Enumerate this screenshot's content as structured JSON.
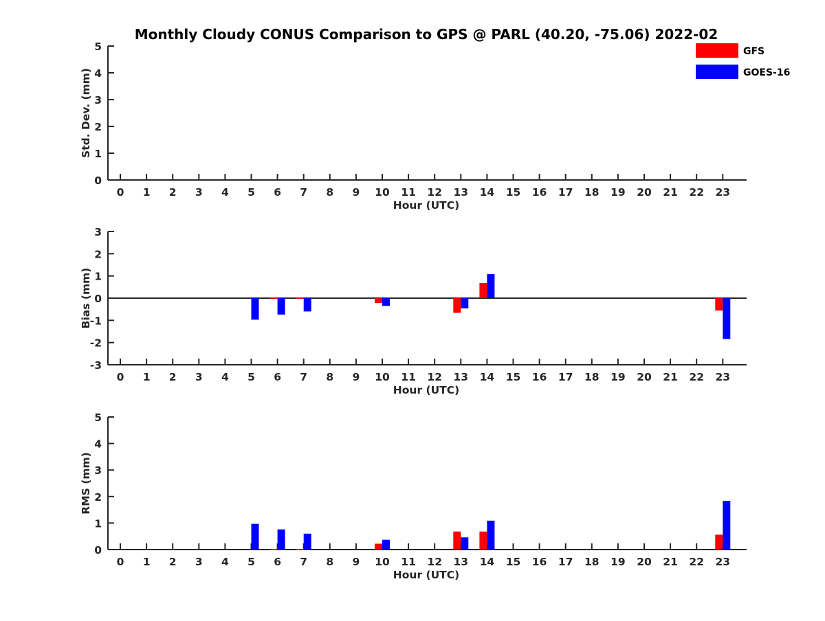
{
  "chart_data": {
    "title": "Monthly Cloudy CONUS Comparison to GPS @ PARL (40.20, -75.06) 2022-02",
    "legend_position": "top-right",
    "series_colors": {
      "GFS": "#ff0000",
      "GOES-16": "#0000ff"
    },
    "legend": [
      {
        "label": "GFS",
        "color": "#ff0000"
      },
      {
        "label": "GOES-16",
        "color": "#0000ff"
      }
    ],
    "panels": [
      {
        "type": "bar",
        "ylabel": "Std. Dev. (mm)",
        "xlabel": "Hour (UTC)",
        "ylim": [
          0,
          5
        ],
        "yticks": [
          "0",
          "1",
          "2",
          "3",
          "4",
          "5"
        ],
        "zero_line": false,
        "categories": [
          "0",
          "1",
          "2",
          "3",
          "4",
          "5",
          "6",
          "7",
          "8",
          "9",
          "10",
          "11",
          "12",
          "13",
          "14",
          "15",
          "16",
          "17",
          "18",
          "19",
          "20",
          "21",
          "22",
          "23"
        ],
        "series": [
          {
            "name": "GFS",
            "values": [
              0,
              0,
              0,
              0,
              0,
              0,
              0,
              0,
              0,
              0,
              0,
              0,
              0,
              0,
              0,
              0,
              0,
              0,
              0,
              0,
              0,
              0,
              0,
              0
            ]
          },
          {
            "name": "GOES-16",
            "values": [
              0,
              0,
              0,
              0,
              0,
              0,
              0,
              0,
              0,
              0,
              0,
              0,
              0,
              0,
              0,
              0,
              0,
              0,
              0,
              0,
              0,
              0,
              0,
              0
            ]
          }
        ]
      },
      {
        "type": "bar",
        "ylabel": "Bias (mm)",
        "xlabel": "Hour (UTC)",
        "ylim": [
          -3,
          3
        ],
        "yticks": [
          "-3",
          "-2",
          "-1",
          "0",
          "1",
          "2",
          "3"
        ],
        "zero_line": true,
        "categories": [
          "0",
          "1",
          "2",
          "3",
          "4",
          "5",
          "6",
          "7",
          "8",
          "9",
          "10",
          "11",
          "12",
          "13",
          "14",
          "15",
          "16",
          "17",
          "18",
          "19",
          "20",
          "21",
          "22",
          "23"
        ],
        "series": [
          {
            "name": "GFS",
            "values": [
              0,
              0,
              0,
              0,
              0,
              0,
              0.02,
              0.02,
              0,
              0,
              -0.22,
              0,
              0,
              -0.66,
              0.68,
              0,
              0,
              0,
              0,
              0,
              0,
              0,
              0,
              -0.56
            ]
          },
          {
            "name": "GOES-16",
            "values": [
              0,
              0,
              0,
              0,
              0,
              -0.97,
              -0.74,
              -0.6,
              0,
              0,
              -0.35,
              0,
              0,
              -0.46,
              1.08,
              0,
              0,
              0,
              0,
              0,
              0,
              0,
              0,
              -1.84
            ]
          }
        ]
      },
      {
        "type": "bar",
        "ylabel": "RMS (mm)",
        "xlabel": "Hour (UTC)",
        "ylim": [
          0,
          5
        ],
        "yticks": [
          "0",
          "1",
          "2",
          "3",
          "4",
          "5"
        ],
        "zero_line": false,
        "categories": [
          "0",
          "1",
          "2",
          "3",
          "4",
          "5",
          "6",
          "7",
          "8",
          "9",
          "10",
          "11",
          "12",
          "13",
          "14",
          "15",
          "16",
          "17",
          "18",
          "19",
          "20",
          "21",
          "22",
          "23"
        ],
        "series": [
          {
            "name": "GFS",
            "values": [
              0,
              0,
              0,
              0,
              0,
              0,
              0.02,
              0.02,
              0,
              0,
              0.22,
              0,
              0,
              0.68,
              0.68,
              0,
              0,
              0,
              0,
              0,
              0,
              0,
              0,
              0.56
            ]
          },
          {
            "name": "GOES-16",
            "values": [
              0,
              0,
              0,
              0,
              0,
              0.97,
              0.76,
              0.6,
              0,
              0,
              0.37,
              0,
              0,
              0.46,
              1.09,
              0,
              0,
              0,
              0,
              0,
              0,
              0,
              0,
              1.84
            ]
          }
        ]
      }
    ]
  }
}
